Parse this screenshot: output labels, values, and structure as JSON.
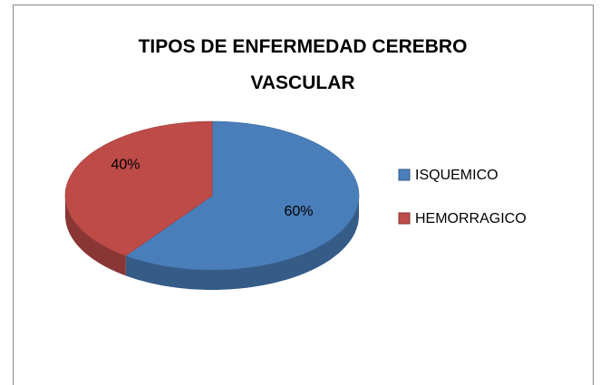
{
  "chart_data": {
    "type": "pie",
    "title": "TIPOS DE ENFERMEDAD CEREBRO VASCULAR",
    "categories": [
      "ISQUEMICO",
      "HEMORRAGICO"
    ],
    "values": [
      60,
      40
    ],
    "value_labels": [
      "60%",
      "40%"
    ],
    "colors": [
      "#4a7ebb",
      "#be4b48"
    ],
    "legend": "right"
  }
}
